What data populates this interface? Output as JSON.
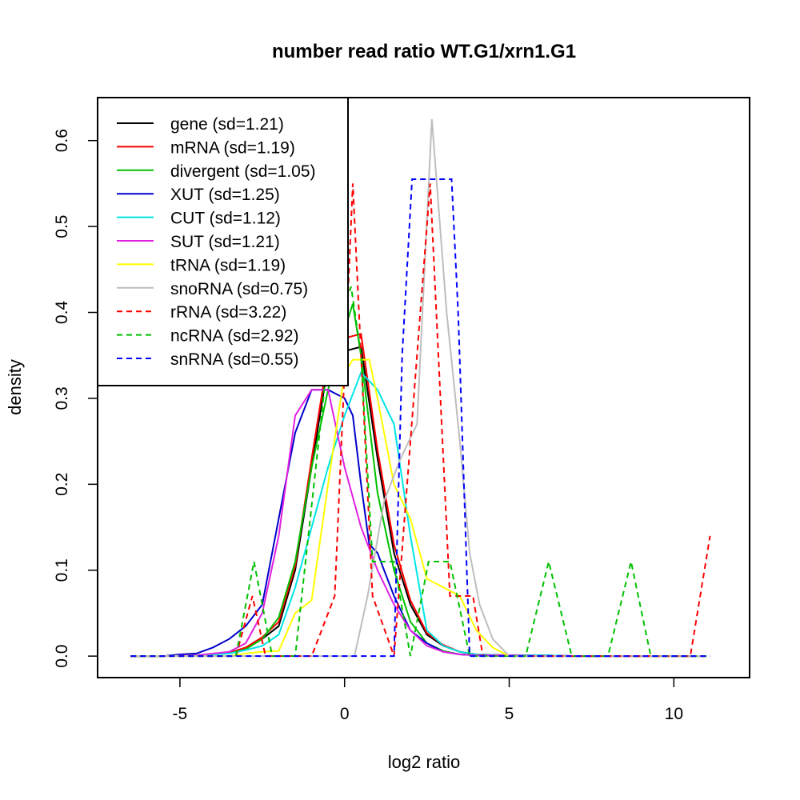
{
  "chart_data": {
    "type": "line",
    "title": "number read ratio WT.G1/xrn1.G1",
    "xlabel": "log2 ratio",
    "ylabel": "density",
    "xlim": [
      -7.5,
      12.3
    ],
    "ylim": [
      -0.025,
      0.65
    ],
    "xticks": [
      -5,
      0,
      5,
      10
    ],
    "xtick_labels": [
      "-5",
      "0",
      "5",
      "10"
    ],
    "yticks": [
      0.0,
      0.1,
      0.2,
      0.3,
      0.4,
      0.5,
      0.6
    ],
    "ytick_labels": [
      "0.0",
      "0.1",
      "0.2",
      "0.3",
      "0.4",
      "0.5",
      "0.6"
    ],
    "legend_position": "top-left",
    "series": [
      {
        "name": "gene (sd=1.21)",
        "color": "#000000",
        "dash": "solid",
        "x": [
          -6.5,
          -5.5,
          -4.5,
          -3.5,
          -3,
          -2.5,
          -2,
          -1.5,
          -1,
          -0.5,
          0,
          0.5,
          1,
          1.5,
          2,
          2.5,
          3,
          3.5,
          4,
          5,
          6,
          7,
          8,
          9,
          10,
          11
        ],
        "y": [
          0,
          0,
          0.001,
          0.004,
          0.01,
          0.02,
          0.035,
          0.1,
          0.22,
          0.34,
          0.355,
          0.36,
          0.23,
          0.12,
          0.06,
          0.025,
          0.012,
          0.005,
          0.002,
          0.001,
          0.001,
          0,
          0,
          0,
          0,
          0
        ]
      },
      {
        "name": "mRNA (sd=1.19)",
        "color": "#ff0000",
        "dash": "solid",
        "x": [
          -6.5,
          -5.5,
          -4.5,
          -3.5,
          -3,
          -2.5,
          -2,
          -1.5,
          -1,
          -0.5,
          0,
          0.5,
          1,
          1.5,
          2,
          2.5,
          3,
          3.5,
          4,
          5,
          6,
          7,
          8,
          9,
          10,
          11
        ],
        "y": [
          0,
          0,
          0.001,
          0.004,
          0.01,
          0.022,
          0.04,
          0.105,
          0.23,
          0.35,
          0.37,
          0.375,
          0.24,
          0.13,
          0.065,
          0.027,
          0.013,
          0.005,
          0.002,
          0.001,
          0.001,
          0,
          0,
          0,
          0,
          0
        ]
      },
      {
        "name": "divergent (sd=1.05)",
        "color": "#00c000",
        "dash": "solid",
        "x": [
          -6.5,
          -5.5,
          -4.5,
          -3.5,
          -3,
          -2.5,
          -2,
          -1.5,
          -1,
          -0.5,
          0,
          0.25,
          0.5,
          1,
          1.5,
          2,
          2.5,
          3,
          3.5,
          4,
          5,
          6,
          7,
          8,
          9,
          10,
          11
        ],
        "y": [
          0,
          0,
          0.001,
          0.003,
          0.008,
          0.02,
          0.045,
          0.11,
          0.22,
          0.31,
          0.38,
          0.41,
          0.35,
          0.19,
          0.1,
          0.04,
          0.015,
          0.006,
          0.002,
          0.001,
          0,
          0,
          0,
          0,
          0,
          0,
          0
        ]
      },
      {
        "name": "XUT (sd=1.25)",
        "color": "#0000cc",
        "dash": "solid",
        "x": [
          -6.5,
          -5.5,
          -5,
          -4.5,
          -4,
          -3.5,
          -3,
          -2.5,
          -2,
          -1.5,
          -1,
          -0.5,
          0,
          0.25,
          0.5,
          0.75,
          1,
          1.5,
          2,
          2.5,
          3,
          3.5,
          4,
          5,
          6,
          7,
          8,
          9,
          10,
          11
        ],
        "y": [
          0,
          0,
          0.002,
          0.003,
          0.01,
          0.02,
          0.035,
          0.06,
          0.16,
          0.26,
          0.31,
          0.31,
          0.3,
          0.28,
          0.2,
          0.13,
          0.12,
          0.07,
          0.03,
          0.015,
          0.005,
          0.002,
          0.001,
          0.001,
          0.001,
          0,
          0,
          0,
          0,
          0
        ]
      },
      {
        "name": "CUT (sd=1.12)",
        "color": "#00e5e5",
        "dash": "solid",
        "x": [
          -6.5,
          -5.5,
          -4.5,
          -3.5,
          -3,
          -2.5,
          -2,
          -1.5,
          -1,
          -0.5,
          0,
          0.5,
          1,
          1.5,
          2,
          2.5,
          3,
          3.5,
          4,
          5,
          6,
          7,
          8,
          9,
          10,
          11
        ],
        "y": [
          0,
          0,
          0.001,
          0.003,
          0.007,
          0.012,
          0.025,
          0.08,
          0.15,
          0.22,
          0.28,
          0.33,
          0.31,
          0.27,
          0.14,
          0.03,
          0.012,
          0.005,
          0.002,
          0.001,
          0.001,
          0,
          0,
          0,
          0,
          0
        ]
      },
      {
        "name": "SUT (sd=1.21)",
        "color": "#e020e0",
        "dash": "solid",
        "x": [
          -6.5,
          -5.5,
          -4.5,
          -3.5,
          -3,
          -2.5,
          -2,
          -1.5,
          -1,
          -0.5,
          0,
          0.5,
          1,
          1.5,
          2,
          2.5,
          3,
          3.5,
          4,
          5,
          6,
          7,
          8,
          9,
          10,
          11
        ],
        "y": [
          0,
          0,
          0.001,
          0.005,
          0.015,
          0.05,
          0.14,
          0.28,
          0.31,
          0.31,
          0.22,
          0.15,
          0.1,
          0.06,
          0.03,
          0.012,
          0.005,
          0.002,
          0.001,
          0.001,
          0,
          0,
          0,
          0,
          0,
          0
        ]
      },
      {
        "name": "tRNA (sd=1.19)",
        "color": "#ffff00",
        "dash": "solid",
        "x": [
          -6.5,
          -3.5,
          -3,
          -2.5,
          -2,
          -1.5,
          -1,
          -0.5,
          0,
          0.25,
          0.75,
          1,
          1.5,
          2,
          2.5,
          3,
          3.5,
          4,
          4.5,
          5,
          11
        ],
        "y": [
          0,
          0,
          0.003,
          0.005,
          0.006,
          0.05,
          0.065,
          0.2,
          0.33,
          0.345,
          0.345,
          0.3,
          0.2,
          0.16,
          0.09,
          0.08,
          0.07,
          0.03,
          0.01,
          0,
          0
        ]
      },
      {
        "name": "snoRNA (sd=0.75)",
        "color": "#bebebe",
        "dash": "solid",
        "x": [
          -6.5,
          0.3,
          0.7,
          1.2,
          1.7,
          2.2,
          2.65,
          3.1,
          3.5,
          3.8,
          4.1,
          4.5,
          5,
          11
        ],
        "y": [
          0,
          0,
          0.07,
          0.18,
          0.23,
          0.27,
          0.625,
          0.4,
          0.25,
          0.12,
          0.06,
          0.02,
          0,
          0
        ]
      },
      {
        "name": "rRNA (sd=3.22)",
        "color": "#ff0000",
        "dash": "dashed",
        "x": [
          -6.5,
          -3.3,
          -2.8,
          -2.4,
          -1,
          -0.3,
          0.25,
          0.85,
          1.5,
          2.6,
          3.2,
          3.5,
          3.9,
          4.2,
          10.5,
          11.1
        ],
        "y": [
          0,
          0,
          0.07,
          0,
          0,
          0.07,
          0.55,
          0.07,
          0,
          0.55,
          0.07,
          0.07,
          0.07,
          0,
          0,
          0.14
        ]
      },
      {
        "name": "ncRNA (sd=2.92)",
        "color": "#00c000",
        "dash": "dashed",
        "x": [
          -6.5,
          -3.3,
          -2.75,
          -2.2,
          -1.5,
          -0.5,
          0.2,
          0.5,
          0.85,
          1.5,
          2,
          2.55,
          3.2,
          3.8,
          5.5,
          6.2,
          6.9,
          8,
          8.7,
          9.3,
          11.1
        ],
        "y": [
          0,
          0,
          0.11,
          0,
          0,
          0.35,
          0.43,
          0.35,
          0.11,
          0.11,
          0,
          0.11,
          0.11,
          0,
          0,
          0.11,
          0,
          0,
          0.11,
          0,
          0
        ]
      },
      {
        "name": "snRNA (sd=0.55)",
        "color": "#0000ff",
        "dash": "dashed",
        "x": [
          -6.5,
          1.5,
          1.75,
          2.05,
          3.25,
          3.45,
          3.8,
          4.2,
          11.1
        ],
        "y": [
          0,
          0,
          0.35,
          0.555,
          0.555,
          0.4,
          0.0,
          0,
          0
        ]
      }
    ]
  }
}
